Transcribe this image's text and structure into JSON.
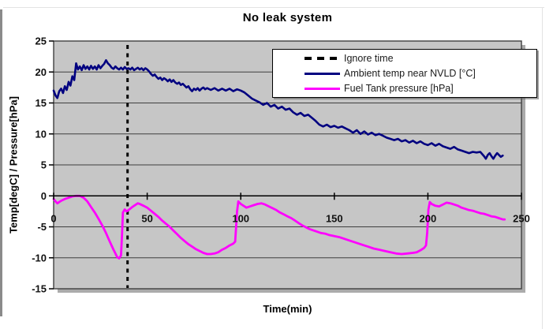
{
  "chart_data": {
    "type": "line",
    "title": "No leak system",
    "xlabel": "Time(min)",
    "ylabel": "Temp[degC] / Pressure[hPa]",
    "xlim": [
      0,
      250
    ],
    "ylim": [
      -15,
      25
    ],
    "xticks": [
      0,
      50,
      100,
      150,
      200,
      250
    ],
    "yticks": [
      25,
      20,
      15,
      10,
      5,
      0,
      -5,
      -10,
      -15
    ],
    "grid": "horizontal",
    "plot_bg": "#c6c6c6",
    "gridline_color": "#3f3f3f",
    "axis_color": "#000000",
    "legend_position": "top-right overlay",
    "annotations": [
      {
        "name": "Ignore time",
        "type": "vline",
        "x": 39.5,
        "style": "dashed",
        "color": "#000000"
      }
    ],
    "legend": [
      {
        "label": "Ignore time",
        "key": "dashed",
        "color": "#000000"
      },
      {
        "label": "Ambient temp near NVLD [°C]",
        "key": "solid",
        "color": "#000080"
      },
      {
        "label": "Fuel Tank pressure [hPa]",
        "key": "solid",
        "color": "#ff00ff"
      }
    ],
    "series": [
      {
        "name": "Ambient temp near NVLD [°C]",
        "color": "#000080",
        "width": 2.6,
        "points": [
          [
            0,
            17.0
          ],
          [
            1,
            16.2
          ],
          [
            2,
            15.8
          ],
          [
            3,
            16.9
          ],
          [
            4,
            17.3
          ],
          [
            5,
            16.6
          ],
          [
            6,
            17.7
          ],
          [
            7,
            17.1
          ],
          [
            8,
            18.4
          ],
          [
            9,
            17.8
          ],
          [
            10,
            19.3
          ],
          [
            11,
            18.7
          ],
          [
            12,
            21.4
          ],
          [
            13,
            20.4
          ],
          [
            14,
            20.9
          ],
          [
            15,
            20.3
          ],
          [
            16,
            21.1
          ],
          [
            17,
            20.5
          ],
          [
            18,
            20.9
          ],
          [
            19,
            20.4
          ],
          [
            20,
            21.0
          ],
          [
            21,
            20.5
          ],
          [
            22,
            20.9
          ],
          [
            23,
            20.4
          ],
          [
            24,
            21.1
          ],
          [
            25,
            20.6
          ],
          [
            26,
            21.0
          ],
          [
            27,
            21.3
          ],
          [
            28,
            21.9
          ],
          [
            29,
            21.4
          ],
          [
            30,
            21.1
          ],
          [
            31,
            20.7
          ],
          [
            32,
            20.5
          ],
          [
            33,
            20.9
          ],
          [
            34,
            20.6
          ],
          [
            35,
            20.4
          ],
          [
            36,
            20.7
          ],
          [
            37,
            20.4
          ],
          [
            38,
            20.8
          ],
          [
            39,
            20.5
          ],
          [
            40,
            20.6
          ],
          [
            41,
            20.4
          ],
          [
            42,
            20.7
          ],
          [
            43,
            20.3
          ],
          [
            44,
            20.5
          ],
          [
            45,
            20.7
          ],
          [
            46,
            20.4
          ],
          [
            47,
            20.6
          ],
          [
            48,
            20.3
          ],
          [
            49,
            20.6
          ],
          [
            50,
            20.4
          ],
          [
            51,
            20.1
          ],
          [
            52,
            19.7
          ],
          [
            53,
            19.4
          ],
          [
            54,
            19.6
          ],
          [
            55,
            19.2
          ],
          [
            56,
            18.9
          ],
          [
            57,
            19.1
          ],
          [
            58,
            18.7
          ],
          [
            59,
            19.0
          ],
          [
            60,
            18.8
          ],
          [
            61,
            18.5
          ],
          [
            62,
            18.8
          ],
          [
            63,
            18.4
          ],
          [
            64,
            18.7
          ],
          [
            65,
            18.3
          ],
          [
            66,
            18.1
          ],
          [
            67,
            18.3
          ],
          [
            68,
            17.9
          ],
          [
            69,
            18.1
          ],
          [
            70,
            17.8
          ],
          [
            71,
            17.5
          ],
          [
            72,
            17.7
          ],
          [
            73,
            17.2
          ],
          [
            74,
            16.9
          ],
          [
            75,
            17.3
          ],
          [
            76,
            17.1
          ],
          [
            77,
            17.4
          ],
          [
            78,
            17.0
          ],
          [
            79,
            17.3
          ],
          [
            80,
            17.5
          ],
          [
            81,
            17.2
          ],
          [
            82,
            17.4
          ],
          [
            84,
            17.1
          ],
          [
            86,
            17.4
          ],
          [
            88,
            17.0
          ],
          [
            90,
            17.3
          ],
          [
            92,
            17.0
          ],
          [
            94,
            17.3
          ],
          [
            96,
            16.9
          ],
          [
            98,
            17.2
          ],
          [
            100,
            17.0
          ],
          [
            102,
            16.7
          ],
          [
            104,
            16.2
          ],
          [
            106,
            15.7
          ],
          [
            108,
            15.4
          ],
          [
            110,
            15.1
          ],
          [
            112,
            14.7
          ],
          [
            114,
            15.0
          ],
          [
            116,
            14.4
          ],
          [
            118,
            14.7
          ],
          [
            120,
            14.1
          ],
          [
            122,
            14.4
          ],
          [
            124,
            13.9
          ],
          [
            126,
            14.1
          ],
          [
            128,
            13.5
          ],
          [
            130,
            13.1
          ],
          [
            132,
            13.4
          ],
          [
            134,
            12.9
          ],
          [
            136,
            13.1
          ],
          [
            138,
            12.6
          ],
          [
            140,
            12.1
          ],
          [
            142,
            11.5
          ],
          [
            144,
            11.2
          ],
          [
            146,
            11.5
          ],
          [
            148,
            11.1
          ],
          [
            150,
            11.3
          ],
          [
            152,
            11.0
          ],
          [
            154,
            11.2
          ],
          [
            156,
            10.9
          ],
          [
            158,
            10.6
          ],
          [
            160,
            10.2
          ],
          [
            162,
            10.6
          ],
          [
            164,
            10.0
          ],
          [
            166,
            10.4
          ],
          [
            168,
            9.9
          ],
          [
            170,
            10.2
          ],
          [
            172,
            9.8
          ],
          [
            174,
            10.0
          ],
          [
            176,
            9.7
          ],
          [
            178,
            9.4
          ],
          [
            180,
            9.2
          ],
          [
            182,
            9.0
          ],
          [
            184,
            9.2
          ],
          [
            186,
            8.8
          ],
          [
            188,
            9.0
          ],
          [
            190,
            8.6
          ],
          [
            192,
            8.9
          ],
          [
            194,
            8.5
          ],
          [
            196,
            8.8
          ],
          [
            198,
            8.4
          ],
          [
            200,
            8.2
          ],
          [
            202,
            8.5
          ],
          [
            204,
            8.1
          ],
          [
            206,
            8.4
          ],
          [
            208,
            8.0
          ],
          [
            210,
            7.8
          ],
          [
            212,
            7.6
          ],
          [
            214,
            7.9
          ],
          [
            216,
            7.5
          ],
          [
            218,
            7.3
          ],
          [
            220,
            7.1
          ],
          [
            222,
            6.9
          ],
          [
            224,
            7.1
          ],
          [
            226,
            7.0
          ],
          [
            228,
            7.1
          ],
          [
            230,
            6.4
          ],
          [
            231,
            6.0
          ],
          [
            232,
            6.6
          ],
          [
            233,
            6.9
          ],
          [
            234,
            6.4
          ],
          [
            235,
            6.0
          ],
          [
            236,
            6.5
          ],
          [
            237,
            6.9
          ],
          [
            238,
            6.6
          ],
          [
            239,
            6.3
          ],
          [
            240,
            6.5
          ]
        ]
      },
      {
        "name": "Fuel Tank pressure [hPa]",
        "color": "#ff00ff",
        "width": 2.8,
        "points": [
          [
            0,
            -0.5
          ],
          [
            1,
            -0.9
          ],
          [
            2,
            -1.2
          ],
          [
            3,
            -1.0
          ],
          [
            4,
            -0.8
          ],
          [
            6,
            -0.5
          ],
          [
            8,
            -0.3
          ],
          [
            10,
            -0.1
          ],
          [
            12,
            0.0
          ],
          [
            14,
            0.0
          ],
          [
            16,
            -0.3
          ],
          [
            18,
            -0.9
          ],
          [
            20,
            -1.8
          ],
          [
            22,
            -2.7
          ],
          [
            24,
            -3.7
          ],
          [
            26,
            -4.8
          ],
          [
            28,
            -6.0
          ],
          [
            30,
            -7.4
          ],
          [
            32,
            -8.7
          ],
          [
            33,
            -9.3
          ],
          [
            34,
            -9.9
          ],
          [
            35,
            -10.1
          ],
          [
            36,
            -9.6
          ],
          [
            36.5,
            -6.5
          ],
          [
            37,
            -2.7
          ],
          [
            38,
            -2.2
          ],
          [
            39,
            -2.5
          ],
          [
            40,
            -2.3
          ],
          [
            42,
            -1.8
          ],
          [
            44,
            -1.4
          ],
          [
            45,
            -1.2
          ],
          [
            46,
            -1.3
          ],
          [
            48,
            -1.6
          ],
          [
            50,
            -1.9
          ],
          [
            52,
            -2.4
          ],
          [
            54,
            -2.9
          ],
          [
            56,
            -3.4
          ],
          [
            58,
            -4.0
          ],
          [
            60,
            -4.5
          ],
          [
            62,
            -5.0
          ],
          [
            64,
            -5.6
          ],
          [
            66,
            -6.2
          ],
          [
            68,
            -6.8
          ],
          [
            70,
            -7.3
          ],
          [
            72,
            -7.8
          ],
          [
            74,
            -8.2
          ],
          [
            76,
            -8.6
          ],
          [
            78,
            -8.9
          ],
          [
            80,
            -9.2
          ],
          [
            82,
            -9.4
          ],
          [
            84,
            -9.4
          ],
          [
            86,
            -9.3
          ],
          [
            88,
            -9.1
          ],
          [
            90,
            -8.7
          ],
          [
            92,
            -8.4
          ],
          [
            94,
            -8.0
          ],
          [
            96,
            -7.7
          ],
          [
            97,
            -7.4
          ],
          [
            97.5,
            -5.0
          ],
          [
            98,
            -2.5
          ],
          [
            98.7,
            -0.9
          ],
          [
            100,
            -1.3
          ],
          [
            102,
            -1.7
          ],
          [
            103,
            -1.9
          ],
          [
            105,
            -1.7
          ],
          [
            107,
            -1.5
          ],
          [
            109,
            -1.3
          ],
          [
            111,
            -1.2
          ],
          [
            113,
            -1.4
          ],
          [
            115,
            -1.7
          ],
          [
            117,
            -2.0
          ],
          [
            119,
            -2.3
          ],
          [
            121,
            -2.7
          ],
          [
            123,
            -3.0
          ],
          [
            125,
            -3.3
          ],
          [
            127,
            -3.6
          ],
          [
            129,
            -4.0
          ],
          [
            131,
            -4.4
          ],
          [
            133,
            -4.8
          ],
          [
            135,
            -5.1
          ],
          [
            137,
            -5.4
          ],
          [
            139,
            -5.6
          ],
          [
            141,
            -5.8
          ],
          [
            143,
            -6.0
          ],
          [
            145,
            -6.1
          ],
          [
            147,
            -6.3
          ],
          [
            150,
            -6.5
          ],
          [
            153,
            -6.7
          ],
          [
            156,
            -7.0
          ],
          [
            159,
            -7.3
          ],
          [
            162,
            -7.6
          ],
          [
            165,
            -7.9
          ],
          [
            168,
            -8.2
          ],
          [
            171,
            -8.5
          ],
          [
            174,
            -8.7
          ],
          [
            177,
            -8.9
          ],
          [
            180,
            -9.1
          ],
          [
            183,
            -9.3
          ],
          [
            186,
            -9.4
          ],
          [
            189,
            -9.3
          ],
          [
            192,
            -9.2
          ],
          [
            194,
            -9.1
          ],
          [
            196,
            -8.8
          ],
          [
            198,
            -8.4
          ],
          [
            199,
            -8.0
          ],
          [
            199.6,
            -6.0
          ],
          [
            200.3,
            -2.2
          ],
          [
            201,
            -1.0
          ],
          [
            202,
            -1.3
          ],
          [
            204,
            -1.6
          ],
          [
            206,
            -1.7
          ],
          [
            208,
            -1.4
          ],
          [
            210,
            -1.1
          ],
          [
            212,
            -1.2
          ],
          [
            214,
            -1.4
          ],
          [
            216,
            -1.6
          ],
          [
            218,
            -1.9
          ],
          [
            220,
            -2.1
          ],
          [
            222,
            -2.3
          ],
          [
            224,
            -2.4
          ],
          [
            226,
            -2.6
          ],
          [
            228,
            -2.8
          ],
          [
            230,
            -2.9
          ],
          [
            232,
            -3.1
          ],
          [
            234,
            -3.3
          ],
          [
            236,
            -3.4
          ],
          [
            238,
            -3.6
          ],
          [
            240,
            -3.8
          ],
          [
            241,
            -3.8
          ]
        ]
      }
    ]
  }
}
